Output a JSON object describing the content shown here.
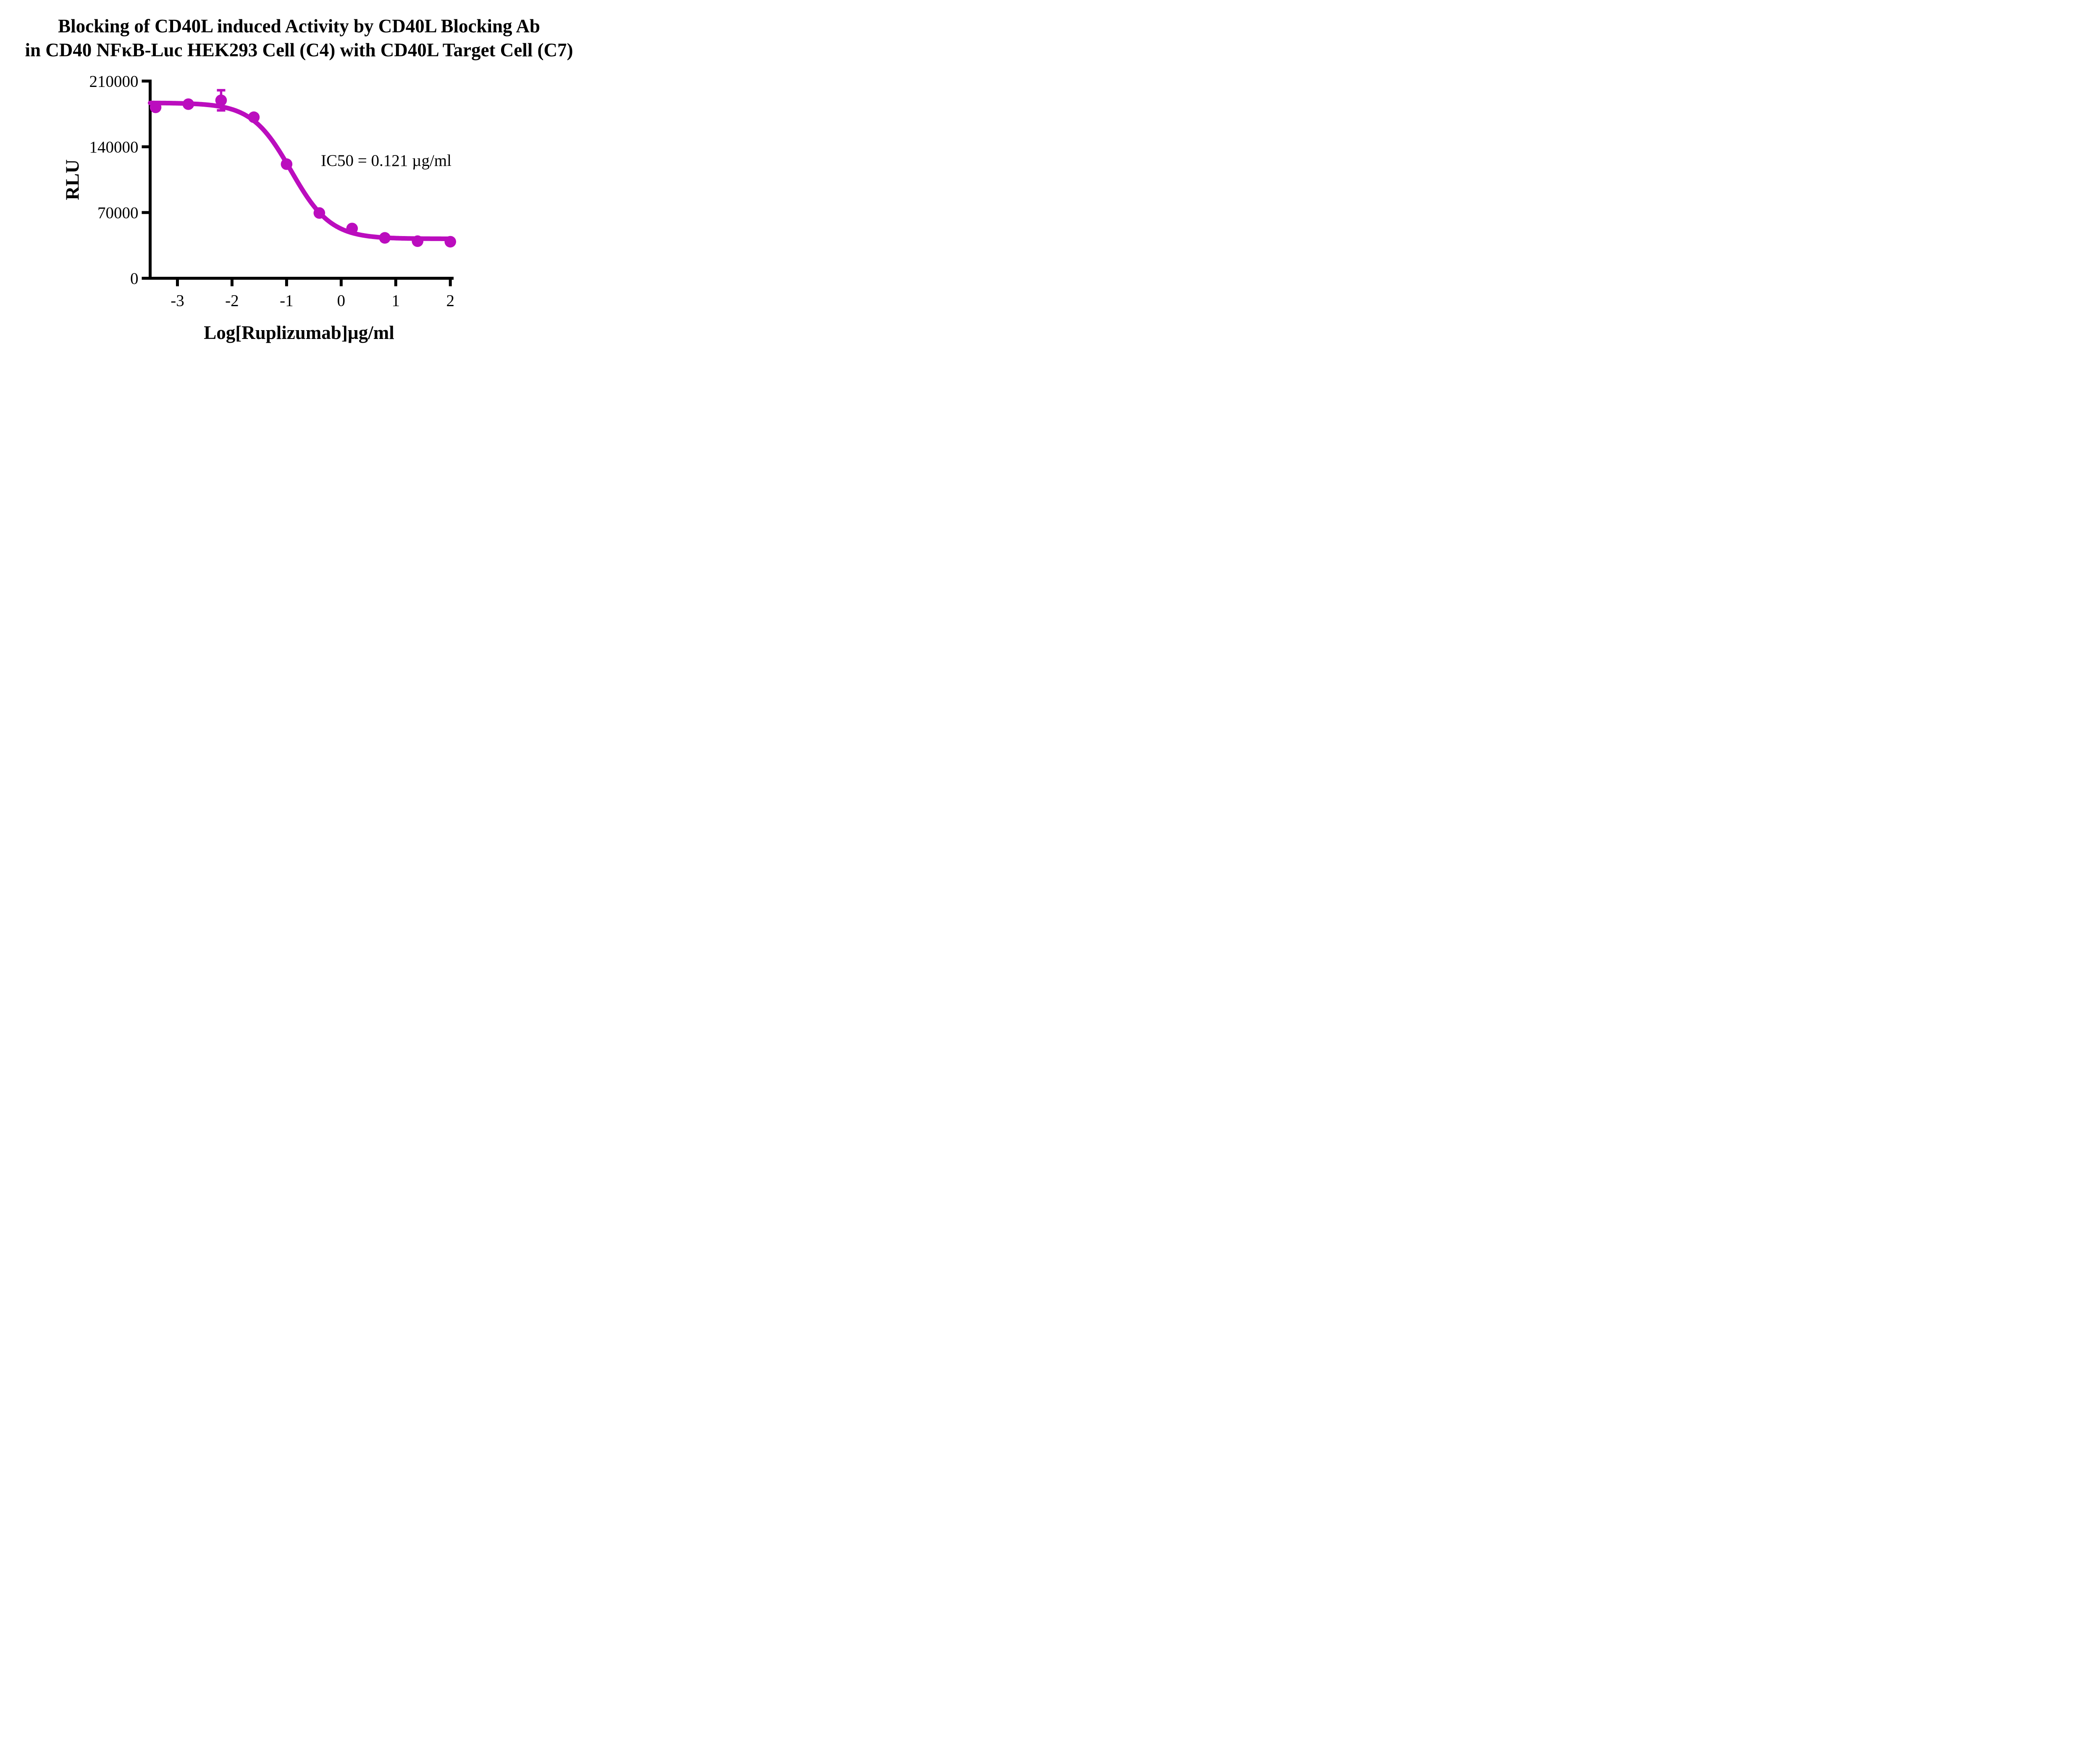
{
  "title": {
    "line1": "Blocking of CD40L induced Activity by CD40L Blocking Ab",
    "line2": "in CD40 NFκB-Luc HEK293 Cell (C4) with CD40L Target Cell (C7)"
  },
  "colors": {
    "curve": "#BB0DBE",
    "axis": "#000000",
    "text": "#000000",
    "background": "#FFFFFF"
  },
  "chart_data": {
    "type": "scatter",
    "title": "Blocking of CD40L induced Activity by CD40L Blocking Ab in CD40 NFκB-Luc HEK293 Cell (C4) with CD40L Target Cell (C7)",
    "xlabel": "Log[Ruplizumab]µg/ml",
    "ylabel": "RLU",
    "ic50_text": "IC50 = 0.121 µg/ml",
    "ic50_value": 0.121,
    "ic50_units": "µg/ml",
    "xlim": [
      -3.5,
      2.06
    ],
    "ylim": [
      0,
      210000
    ],
    "xticks": [
      -3,
      -2,
      -1,
      0,
      1,
      2
    ],
    "yticks": [
      0,
      70000,
      140000,
      210000
    ],
    "grid": false,
    "legend_position": "none",
    "points": {
      "x": [
        -3.4,
        -2.8,
        -2.2,
        -1.6,
        -1.0,
        -0.4,
        0.2,
        0.8,
        1.4,
        2.0
      ],
      "y": [
        182000,
        185400,
        189500,
        171500,
        121500,
        69500,
        53000,
        43000,
        39500,
        38900
      ]
    },
    "error_bars": [
      {
        "x": -2.2,
        "y": 189500,
        "plus": 10700,
        "minus": 10700
      }
    ],
    "fit_curve": {
      "model": "4PL",
      "top": 186800,
      "bottom": 42000,
      "log_ic50": -0.917,
      "hill_slope": 1.2,
      "x_start": -3.5,
      "x_end": 2.0
    }
  }
}
